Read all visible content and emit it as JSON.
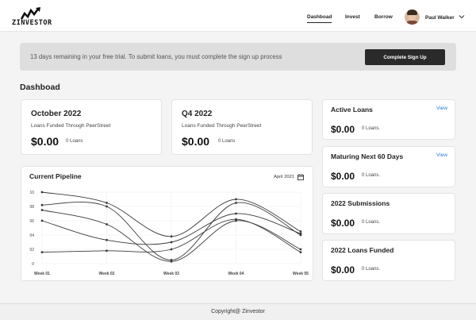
{
  "header": {
    "logo_text": "ZINVESTOR",
    "nav": [
      {
        "label": "Dashboad",
        "active": true
      },
      {
        "label": "Invest",
        "active": false
      },
      {
        "label": "Borrow",
        "active": false
      }
    ],
    "user_name": "Paul Walker"
  },
  "banner": {
    "text": "13 days remaining in your free trial. To submit loans, you must complete the sign up process",
    "button_label": "Complete Sign Up"
  },
  "page_title": "Dashboad",
  "summary_cards": [
    {
      "title": "October 2022",
      "subtitle": "Loans Funded Through PeerStreet",
      "amount": "$0.00",
      "loans": "0 Loans"
    },
    {
      "title": "Q4 2022",
      "subtitle": "Loans Funded Through PeerStreet",
      "amount": "$0.00",
      "loans": "0 Loans"
    }
  ],
  "side_cards": [
    {
      "title": "Active Loans",
      "view": "View",
      "amount": "$0.00",
      "loans": "0 Loans."
    },
    {
      "title": "Maturing Next 60 Days",
      "view": "View",
      "amount": "$0.00",
      "loans": "0 Loans."
    },
    {
      "title": "2022 Submissions",
      "amount": "$0.00",
      "loans": "0 Loans."
    },
    {
      "title": "2022 Loans Funded",
      "amount": "$0.00",
      "loans": "0 Loans."
    }
  ],
  "pipeline": {
    "title": "Current Pipeline",
    "date": "April 2021"
  },
  "chart_data": {
    "type": "line",
    "categories": [
      "Week 01",
      "Week 02",
      "Week 03",
      "Week 04",
      "Week 05"
    ],
    "yticks": [
      "0",
      "02",
      "04",
      "06",
      "08",
      "10"
    ],
    "ylim": [
      0,
      1.0
    ],
    "series": [
      {
        "values": [
          1.0,
          0.85,
          0.38,
          0.9,
          0.45
        ]
      },
      {
        "values": [
          0.82,
          0.8,
          0.05,
          0.85,
          0.4
        ]
      },
      {
        "values": [
          0.75,
          0.55,
          0.03,
          0.6,
          0.2
        ]
      },
      {
        "values": [
          0.6,
          0.33,
          0.3,
          0.7,
          0.42
        ]
      },
      {
        "values": [
          0.16,
          0.18,
          0.2,
          0.62,
          0.16
        ]
      }
    ],
    "line_color": "#3a3a3a",
    "grid": true
  },
  "footer": {
    "text": "Copyright@ Zinvestor"
  }
}
